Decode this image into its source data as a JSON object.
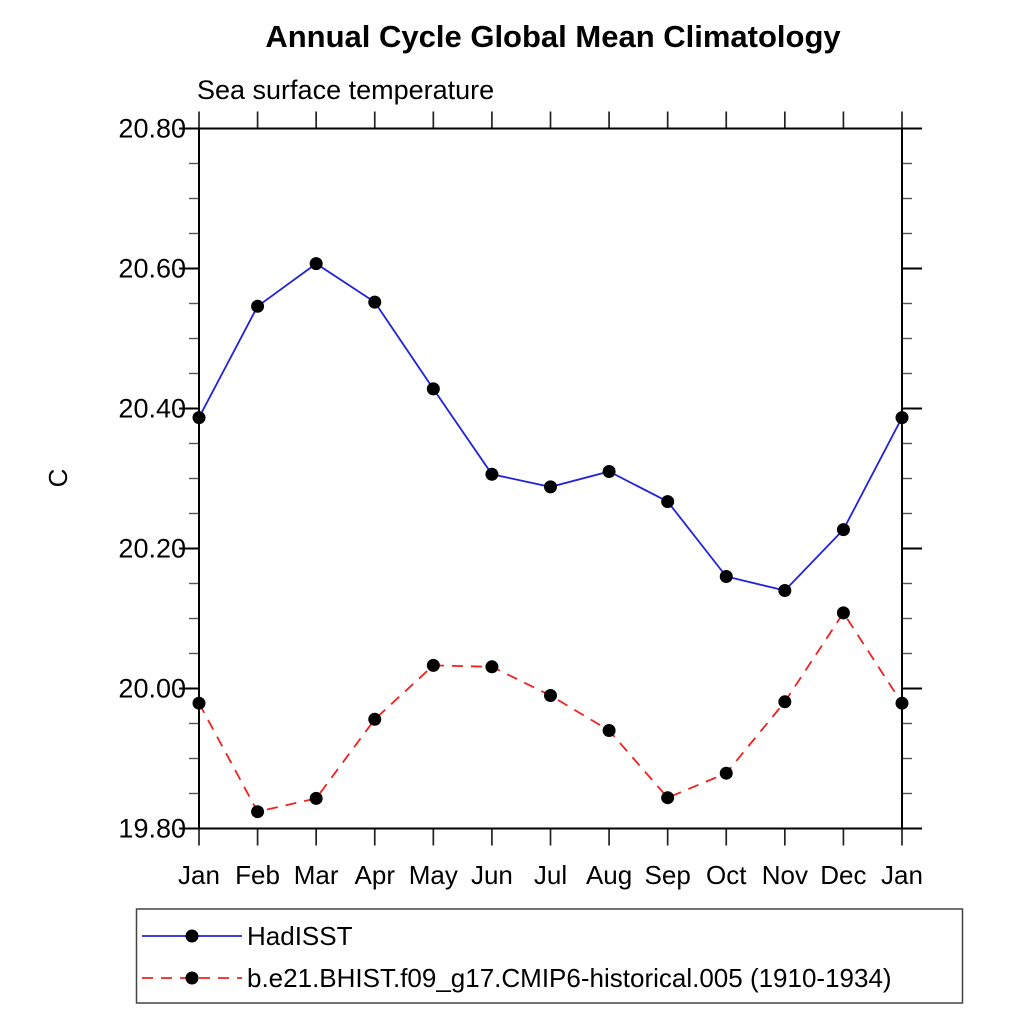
{
  "title": "Annual Cycle Global Mean Climatology",
  "subtitle": "Sea surface temperature",
  "y_axis": {
    "label": "C",
    "tick_labels": [
      "19.80",
      "20.00",
      "20.20",
      "20.40",
      "20.60",
      "20.80"
    ],
    "major_step": 0.2,
    "minor_step": 0.05,
    "min": 19.8,
    "max": 20.8
  },
  "x_axis": {
    "tick_labels": [
      "Jan",
      "Feb",
      "Mar",
      "Apr",
      "May",
      "Jun",
      "Jul",
      "Aug",
      "Sep",
      "Oct",
      "Nov",
      "Dec",
      "Jan"
    ]
  },
  "colors": {
    "axis": "#000000",
    "minor_tick": "#555555",
    "marker": "#000000",
    "legend_border": "#444444"
  },
  "chart_data": {
    "type": "line",
    "title": "Annual Cycle Global Mean Climatology",
    "subtitle": "Sea surface temperature",
    "xlabel": "",
    "ylabel": "C",
    "categories": [
      "Jan",
      "Feb",
      "Mar",
      "Apr",
      "May",
      "Jun",
      "Jul",
      "Aug",
      "Sep",
      "Oct",
      "Nov",
      "Dec",
      "Jan"
    ],
    "ylim": [
      19.8,
      20.8
    ],
    "y_major_tick_step": 0.2,
    "y_minor_tick_step": 0.05,
    "grid": false,
    "legend_position": "boxed-below-left",
    "series": [
      {
        "name": "HadISST",
        "color": "#2222dd",
        "line_style": "solid",
        "marker": "filled-circle",
        "marker_color": "#000000",
        "values": [
          20.387,
          20.546,
          20.607,
          20.552,
          20.428,
          20.306,
          20.288,
          20.31,
          20.267,
          20.16,
          20.14,
          20.227,
          20.387
        ]
      },
      {
        "name": "b.e21.BHIST.f09_g17.CMIP6-historical.005 (1910-1934)",
        "color": "#ee2222",
        "line_style": "dashed",
        "marker": "filled-circle",
        "marker_color": "#000000",
        "values": [
          19.979,
          19.824,
          19.843,
          19.956,
          20.033,
          20.031,
          19.99,
          19.94,
          19.844,
          19.879,
          19.981,
          20.108,
          19.979
        ]
      }
    ]
  }
}
